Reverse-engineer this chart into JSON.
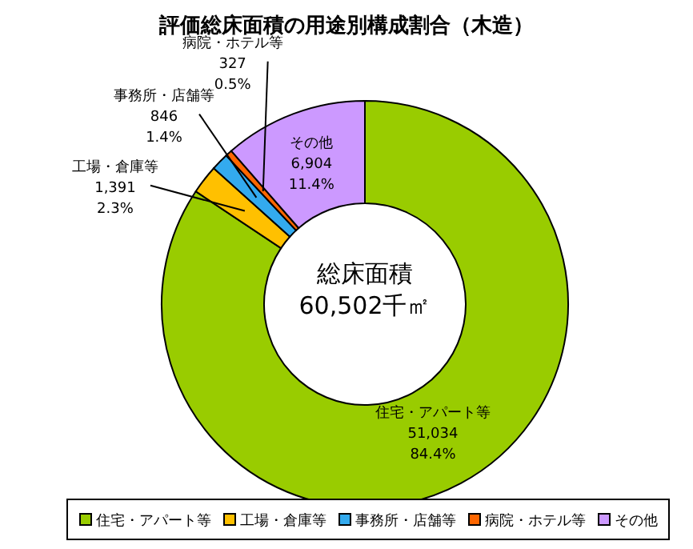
{
  "chart_data": {
    "type": "donut",
    "title": "評価総床面積の用途別構成割合（木造）",
    "categories": [
      "住宅・アパート等",
      "工場・倉庫等",
      "事務所・店舗等",
      "病院・ホテル等",
      "その他"
    ],
    "values": [
      51034,
      1391,
      846,
      327,
      6904
    ],
    "colors": [
      "#99cc00",
      "#ffc000",
      "#33aaee",
      "#ff6600",
      "#cc99ff"
    ],
    "value_labels": [
      "51,034\n84.4%",
      "1,391\n2.3%",
      "846\n1.4%",
      "327\n0.5%",
      "6,904\n11.4%"
    ],
    "annotations": [
      "総床面積",
      "60,502千㎡"
    ],
    "legend": "bottom"
  }
}
